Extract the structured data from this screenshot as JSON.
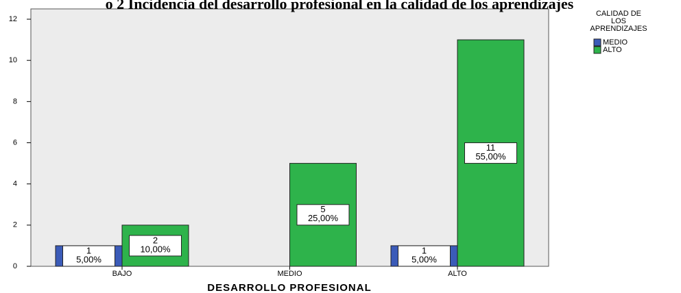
{
  "chart_data": {
    "type": "bar",
    "title": "o 2 Incidencia del desarrollo profesional en la calidad de los aprendizajes",
    "x_label": "DESARROLLO PROFESIONAL",
    "legend_title": [
      "CALIDAD DE",
      "LOS",
      "APRENDIZAJES"
    ],
    "categories": [
      "BAJO",
      "MEDIO",
      "ALTO"
    ],
    "series": [
      {
        "name": "MEDIO",
        "color": "#3b5bb8",
        "values": [
          1,
          null,
          1
        ],
        "percentages": [
          5,
          null,
          5
        ],
        "percentage_labels": [
          "5,00%",
          null,
          "5,00%"
        ]
      },
      {
        "name": "ALTO",
        "color": "#2eb34b",
        "values": [
          2,
          5,
          11
        ],
        "percentages": [
          10,
          25,
          55
        ],
        "percentage_labels": [
          "10,00%",
          "25,00%",
          "55,00%"
        ]
      }
    ],
    "ylim": [
      0,
      12.5
    ],
    "yticks": [
      0,
      2,
      4,
      6,
      8,
      10,
      12
    ],
    "legend": "right"
  }
}
